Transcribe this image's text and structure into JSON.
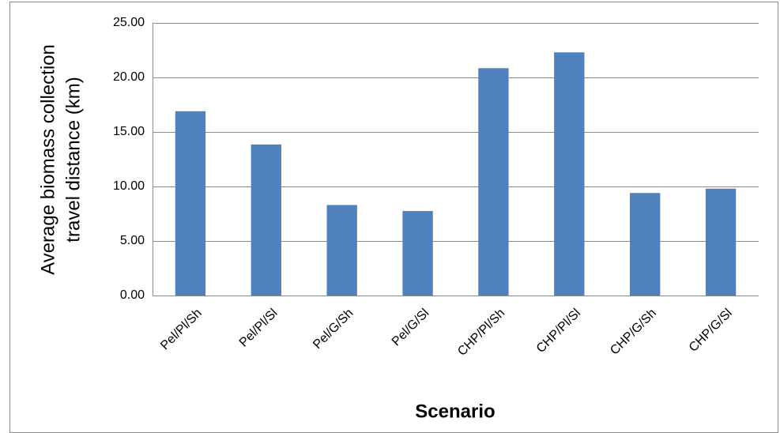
{
  "chart_data": {
    "type": "bar",
    "y_label": [
      "Average biomass collection",
      "travel distance (km)"
    ],
    "x_label": "Scenario",
    "categories": [
      "Pel/Pl/Sh",
      "Pel/Pl/Sl",
      "Pel/G/Sh",
      "Pel/G/Sl",
      "CHP/Pl/Sh",
      "CHP/Pl/Sl",
      "CHP/G/Sh",
      "CHP/G/Sl"
    ],
    "values": [
      16.9,
      13.85,
      8.3,
      7.75,
      20.85,
      22.3,
      9.4,
      9.8
    ],
    "color": "#4f81bd",
    "ylim": [
      0,
      25
    ],
    "yticks": [
      {
        "value": 0,
        "label": "0.00"
      },
      {
        "value": 5,
        "label": "5.00"
      },
      {
        "value": 10,
        "label": "10.00"
      },
      {
        "value": 15,
        "label": "15.00"
      },
      {
        "value": 20,
        "label": "20.00"
      },
      {
        "value": 25,
        "label": "25.00"
      }
    ],
    "grid": true
  }
}
